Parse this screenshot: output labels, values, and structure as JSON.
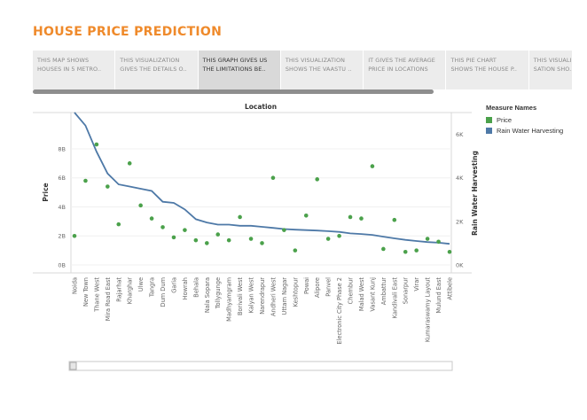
{
  "page": {
    "title": "HOUSE PRICE PREDICTION",
    "title_color": "#ef8a2b"
  },
  "tabs": [
    {
      "line1": "THIS MAP SHOWS",
      "line2": "HOUSES IN 5 METRO..",
      "active": false
    },
    {
      "line1": "THIS VISUALIZATION",
      "line2": "GIVES THE DETAILS O..",
      "active": false
    },
    {
      "line1": "THIS GRAPH GIVES US",
      "line2": "THE LIMITATIONS BE..",
      "active": true
    },
    {
      "line1": "THIS VISUALIZATION",
      "line2": "SHOWS THE VAASTU ..",
      "active": false
    },
    {
      "line1": "IT GIVES THE AVERAGE",
      "line2": "PRICE IN LOCATIONS",
      "active": false
    },
    {
      "line1": "THIS PIE CHART",
      "line2": "SHOWS THE HOUSE P..",
      "active": false
    },
    {
      "line1": "THIS VISUALI",
      "line2": "SATION SHO..",
      "active": false
    }
  ],
  "legend": {
    "title": "Measure Names",
    "items": [
      {
        "label": "Price",
        "color": "#4ba14b"
      },
      {
        "label": "Rain Water Harvesting",
        "color": "#4e79a7"
      }
    ]
  },
  "chart_data": {
    "type": "line",
    "title": "Location",
    "xlabel": "",
    "ylabel": "Price",
    "ylabel_right": "Rain Water Harvesting",
    "ylim": [
      0,
      10.5
    ],
    "y2lim": [
      0,
      7
    ],
    "y_ticks": [
      "0B",
      "2B",
      "4B",
      "6B",
      "8B"
    ],
    "y_tick_values": [
      0,
      2,
      4,
      6,
      8
    ],
    "y2_ticks": [
      "0K",
      "2K",
      "4K",
      "6K"
    ],
    "y2_tick_values": [
      0,
      2,
      4,
      6
    ],
    "grid": true,
    "categories": [
      "Noida",
      "New Town",
      "Thane West",
      "Mira Road East",
      "Rajarhat",
      "Kharghar",
      "Ulwe",
      "Tangra",
      "Dum Dum",
      "Garia",
      "Howrah",
      "Behala",
      "Nala Sopara",
      "Tollygunge",
      "Madhyamgram",
      "Borivali West",
      "Kalyan West",
      "Narendrapur",
      "Andheri West",
      "Uttam Nagar",
      "Keshtopur",
      "Powai",
      "Alipore",
      "Panvel",
      "Electronic City Phase 2",
      "Chembur",
      "Malad West",
      "Vasant Kunj",
      "Ambattur",
      "Kandivali East",
      "Sonarpur",
      "Virar",
      "Kumaraswamy Layout",
      "Mulund East",
      "Attibele"
    ],
    "series": [
      {
        "name": "Price",
        "kind": "points",
        "axis": "left",
        "color": "#4ba14b",
        "values": [
          2.0,
          5.8,
          8.3,
          5.4,
          2.8,
          7.0,
          4.1,
          3.2,
          2.6,
          1.9,
          2.4,
          1.7,
          1.5,
          2.1,
          1.7,
          3.3,
          1.8,
          1.5,
          6.0,
          2.4,
          1.0,
          3.4,
          5.9,
          1.8,
          2.0,
          3.3,
          3.2,
          6.8,
          1.1,
          3.1,
          0.9,
          1.0,
          1.8,
          1.6,
          0.9
        ]
      },
      {
        "name": "Rain Water Harvesting",
        "kind": "line",
        "axis": "right",
        "color": "#4e79a7",
        "values": [
          7.0,
          6.4,
          5.2,
          4.2,
          3.7,
          3.6,
          3.5,
          3.4,
          2.9,
          2.85,
          2.55,
          2.1,
          1.95,
          1.85,
          1.85,
          1.8,
          1.8,
          1.75,
          1.7,
          1.65,
          1.62,
          1.6,
          1.58,
          1.55,
          1.52,
          1.45,
          1.42,
          1.38,
          1.3,
          1.22,
          1.15,
          1.1,
          1.05,
          1.02,
          0.97
        ]
      }
    ]
  }
}
